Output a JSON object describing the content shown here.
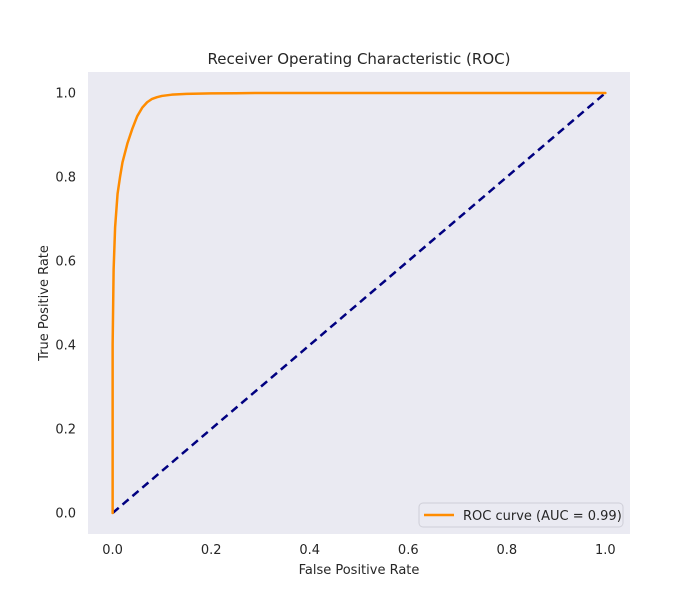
{
  "chart_data": {
    "type": "line",
    "title": "Receiver Operating Characteristic (ROC)",
    "xlabel": "False Positive Rate",
    "ylabel": "True Positive Rate",
    "xlim": [
      -0.05,
      1.05
    ],
    "ylim": [
      -0.05,
      1.05
    ],
    "xticks": [
      0.0,
      0.2,
      0.4,
      0.6,
      0.8,
      1.0
    ],
    "xtick_labels": [
      "0.0",
      "0.2",
      "0.4",
      "0.6",
      "0.8",
      "1.0"
    ],
    "yticks": [
      0.0,
      0.2,
      0.4,
      0.6,
      0.8,
      1.0
    ],
    "ytick_labels": [
      "0.0",
      "0.2",
      "0.4",
      "0.6",
      "0.8",
      "1.0"
    ],
    "grid": false,
    "background_color": "#eaeaf2",
    "legend_position": "lower-right",
    "series": [
      {
        "name": "ROC curve (AUC = 0.99)",
        "color": "#ff8c00",
        "style": "solid",
        "x": [
          0.0,
          0.0,
          0.002,
          0.005,
          0.01,
          0.015,
          0.02,
          0.03,
          0.04,
          0.05,
          0.06,
          0.07,
          0.08,
          0.09,
          0.1,
          0.12,
          0.15,
          0.2,
          0.25,
          0.3,
          0.4,
          0.5,
          0.6,
          0.7,
          0.8,
          0.9,
          1.0
        ],
        "y": [
          0.0,
          0.4,
          0.58,
          0.68,
          0.76,
          0.8,
          0.835,
          0.88,
          0.915,
          0.945,
          0.965,
          0.978,
          0.986,
          0.99,
          0.993,
          0.996,
          0.998,
          0.999,
          0.9995,
          1.0,
          1.0,
          1.0,
          1.0,
          1.0,
          1.0,
          1.0,
          1.0
        ]
      },
      {
        "name": "",
        "color": "#000080",
        "style": "dashed",
        "x": [
          0.0,
          1.0
        ],
        "y": [
          0.0,
          1.0
        ]
      }
    ]
  }
}
